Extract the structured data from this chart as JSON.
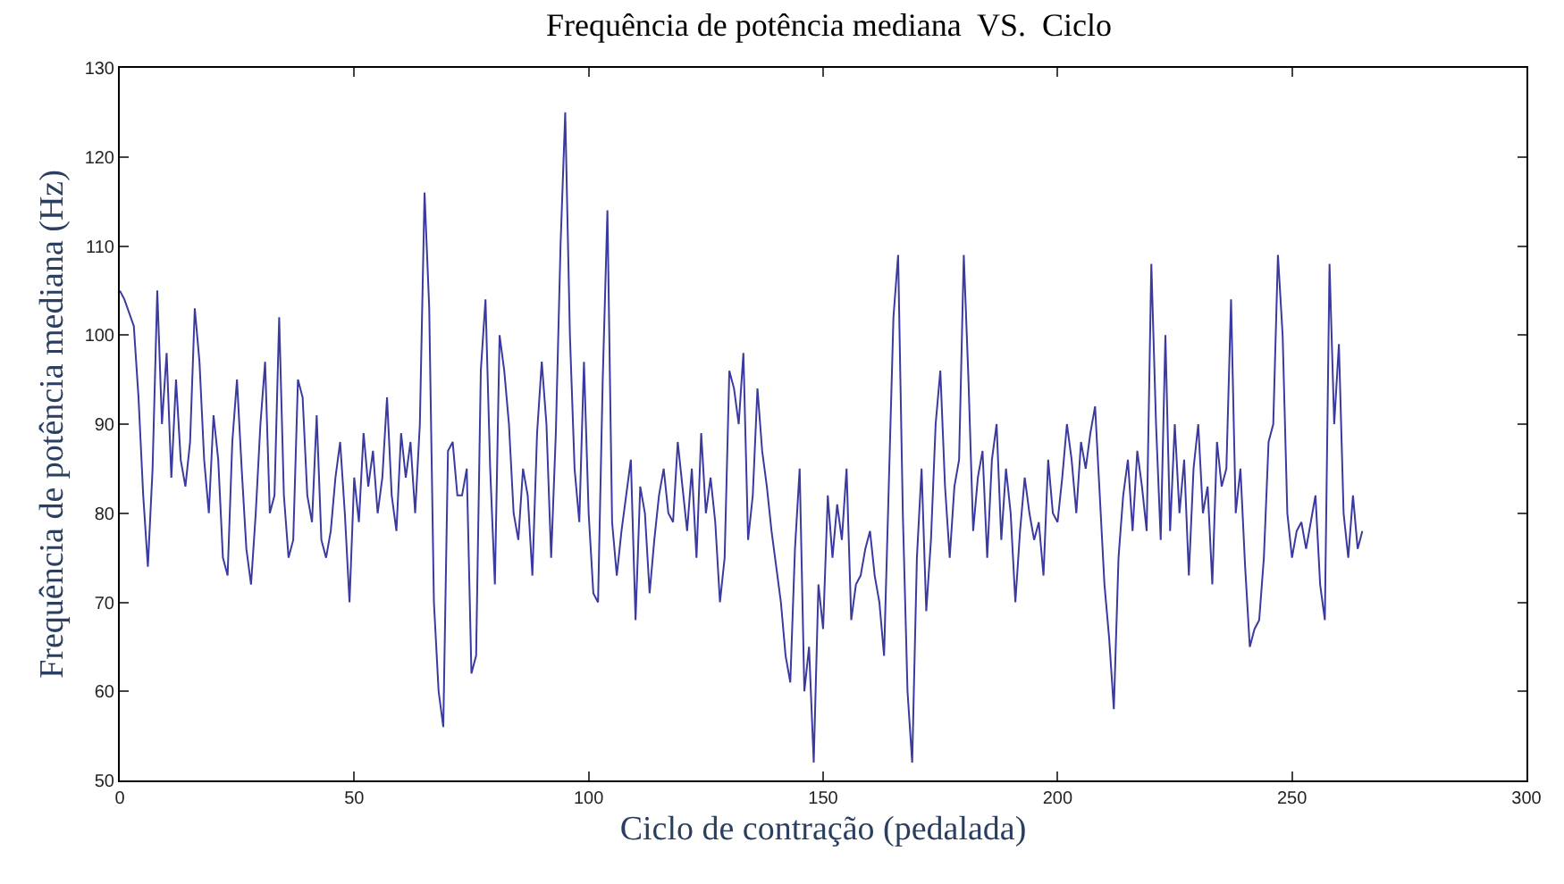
{
  "chart_data": {
    "type": "line",
    "title": "Frequência de potência mediana  VS.  Ciclo",
    "xlabel": "Ciclo de contração (pedalada)",
    "ylabel": "Frequência de potência mediana (Hz)",
    "xlim": [
      0,
      300
    ],
    "xticks": [
      0,
      50,
      100,
      150,
      200,
      250,
      300
    ],
    "ylim": [
      50,
      130
    ],
    "yticks": [
      50,
      60,
      70,
      80,
      90,
      100,
      110,
      120,
      130
    ],
    "grid": false,
    "legend": false,
    "marker": "none",
    "line_style": "solid",
    "series": [
      {
        "color": "#3a3aa0",
        "x": [
          0,
          1,
          3,
          4,
          5,
          6,
          7,
          8,
          9,
          10,
          11,
          12,
          13,
          14,
          15,
          16,
          17,
          18,
          19,
          20,
          21,
          22,
          23,
          24,
          25,
          26,
          27,
          28,
          29,
          30,
          31,
          32,
          33,
          34,
          35,
          36,
          37,
          38,
          39,
          40,
          41,
          42,
          43,
          44,
          45,
          46,
          47,
          48,
          49,
          50,
          51,
          52,
          53,
          54,
          55,
          56,
          57,
          58,
          59,
          60,
          61,
          62,
          63,
          64,
          65,
          66,
          67,
          68,
          69,
          70,
          71,
          72,
          73,
          74,
          75,
          76,
          77,
          78,
          79,
          80,
          81,
          82,
          83,
          84,
          85,
          86,
          87,
          88,
          89,
          90,
          91,
          92,
          93,
          94,
          95,
          96,
          97,
          98,
          99,
          100,
          101,
          102,
          103,
          104,
          105,
          106,
          107,
          108,
          109,
          110,
          111,
          112,
          113,
          114,
          115,
          116,
          117,
          118,
          119,
          120,
          121,
          122,
          123,
          124,
          125,
          126,
          127,
          128,
          129,
          130,
          131,
          132,
          133,
          134,
          135,
          136,
          137,
          138,
          139,
          140,
          141,
          142,
          143,
          144,
          145,
          146,
          147,
          148,
          149,
          150,
          151,
          152,
          153,
          154,
          155,
          156,
          157,
          158,
          159,
          160,
          161,
          162,
          163,
          164,
          165,
          166,
          167,
          168,
          169,
          170,
          171,
          172,
          173,
          174,
          175,
          176,
          177,
          178,
          179,
          180,
          181,
          182,
          183,
          184,
          185,
          186,
          187,
          188,
          189,
          190,
          191,
          192,
          193,
          194,
          195,
          196,
          197,
          198,
          199,
          200,
          201,
          202,
          203,
          204,
          205,
          206,
          207,
          208,
          209,
          210,
          211,
          212,
          213,
          214,
          215,
          216,
          217,
          218,
          219,
          220,
          221,
          222,
          223,
          224,
          225,
          226,
          227,
          228,
          229,
          230,
          231,
          232,
          233,
          234,
          235,
          236,
          237,
          238,
          239,
          240,
          241,
          242,
          243,
          244,
          245,
          246,
          247,
          248,
          249,
          250,
          251,
          252,
          253,
          254,
          255,
          256,
          257,
          258,
          259,
          260,
          261,
          262,
          263,
          264,
          265
        ],
        "values": [
          105,
          104,
          101,
          93,
          82,
          74,
          85,
          105,
          90,
          98,
          84,
          95,
          86,
          83,
          88,
          103,
          97,
          86,
          80,
          91,
          86,
          75,
          73,
          88,
          95,
          85,
          76,
          72,
          80,
          90,
          97,
          80,
          82,
          102,
          82,
          75,
          77,
          95,
          93,
          82,
          79,
          91,
          77,
          75,
          78,
          84,
          88,
          80,
          70,
          84,
          79,
          89,
          83,
          87,
          80,
          84,
          93,
          82,
          78,
          89,
          84,
          88,
          80,
          90,
          116,
          103,
          70,
          60,
          56,
          87,
          88,
          82,
          82,
          85,
          62,
          64,
          96,
          104,
          85,
          72,
          100,
          96,
          90,
          80,
          77,
          85,
          82,
          73,
          89,
          97,
          90,
          75,
          89,
          110,
          125,
          100,
          85,
          79,
          97,
          80,
          71,
          70,
          95,
          114,
          79,
          73,
          78,
          82,
          86,
          68,
          83,
          80,
          71,
          77,
          82,
          85,
          80,
          79,
          88,
          83,
          78,
          85,
          75,
          89,
          80,
          84,
          79,
          70,
          75,
          96,
          94,
          90,
          98,
          77,
          82,
          94,
          87,
          83,
          78,
          74,
          70,
          64,
          61,
          76,
          85,
          60,
          65,
          52,
          72,
          67,
          82,
          75,
          81,
          77,
          85,
          68,
          72,
          73,
          76,
          78,
          73,
          70,
          64,
          83,
          102,
          109,
          80,
          60,
          52,
          75,
          85,
          69,
          77,
          90,
          96,
          83,
          75,
          83,
          86,
          109,
          95,
          78,
          84,
          87,
          75,
          86,
          90,
          77,
          85,
          80,
          70,
          78,
          84,
          80,
          77,
          79,
          73,
          86,
          80,
          79,
          84,
          90,
          86,
          80,
          88,
          85,
          89,
          92,
          82,
          72,
          66,
          58,
          75,
          82,
          86,
          78,
          87,
          83,
          78,
          108,
          90,
          77,
          100,
          78,
          90,
          80,
          86,
          73,
          85,
          90,
          80,
          83,
          72,
          88,
          83,
          85,
          104,
          80,
          85,
          74,
          65,
          67,
          68,
          75,
          88,
          90,
          109,
          100,
          80,
          75,
          78,
          79,
          76,
          79,
          82,
          72,
          68,
          108,
          90,
          99,
          80,
          75,
          82,
          76,
          78
        ]
      }
    ]
  }
}
